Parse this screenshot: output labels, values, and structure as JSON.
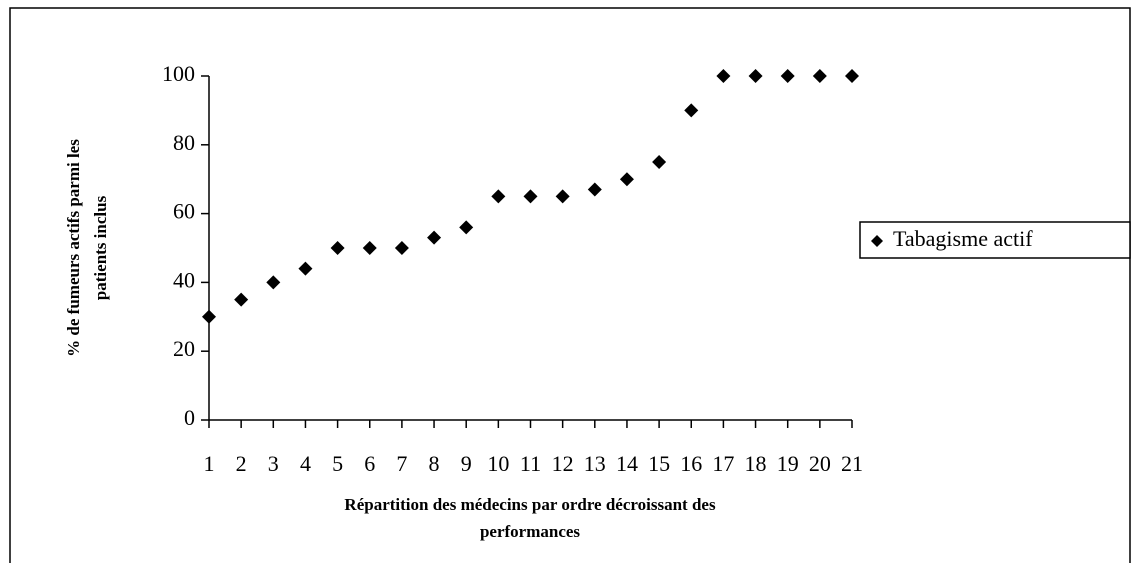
{
  "chart_data": {
    "type": "scatter",
    "x": [
      1,
      2,
      3,
      4,
      5,
      6,
      7,
      8,
      9,
      10,
      11,
      12,
      13,
      14,
      15,
      16,
      17,
      18,
      19,
      20,
      21
    ],
    "series": [
      {
        "name": "Tabagisme actif",
        "color": "#000000",
        "values": [
          30,
          35,
          40,
          44,
          50,
          50,
          50,
          53,
          56,
          65,
          65,
          65,
          67,
          70,
          75,
          90,
          100,
          100,
          100,
          100,
          100
        ]
      }
    ],
    "xlim": [
      1,
      21
    ],
    "xticks": [
      1,
      2,
      3,
      4,
      5,
      6,
      7,
      8,
      9,
      10,
      11,
      12,
      13,
      14,
      15,
      16,
      17,
      18,
      19,
      20,
      21
    ],
    "ylim": [
      0,
      100
    ],
    "yticks": [
      0,
      20,
      40,
      60,
      80,
      100
    ],
    "xlabel": [
      "Répartition des médecins par ordre décroissant des",
      "performances"
    ],
    "ylabel": [
      "% de fumeurs actifs parmi les",
      "patients inclus"
    ],
    "legend": "right",
    "grid": false
  }
}
